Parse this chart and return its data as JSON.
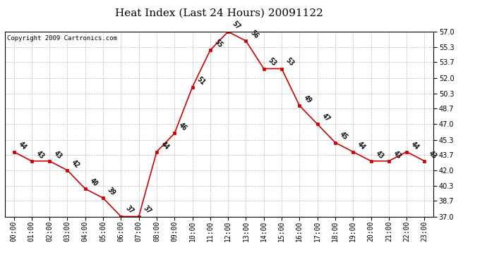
{
  "title": "Heat Index (Last 24 Hours) 20091122",
  "copyright": "Copyright 2009 Cartronics.com",
  "times": [
    "00:00",
    "01:00",
    "02:00",
    "03:00",
    "04:00",
    "05:00",
    "06:00",
    "07:00",
    "08:00",
    "09:00",
    "10:00",
    "11:00",
    "12:00",
    "13:00",
    "14:00",
    "15:00",
    "16:00",
    "17:00",
    "18:00",
    "19:00",
    "20:00",
    "21:00",
    "22:00",
    "23:00"
  ],
  "values": [
    44,
    43,
    43,
    42,
    40,
    39,
    37,
    37,
    44,
    46,
    51,
    55,
    57,
    56,
    53,
    53,
    49,
    47,
    45,
    44,
    43,
    43,
    44,
    43
  ],
  "ylim": [
    37.0,
    57.0
  ],
  "yticks": [
    37.0,
    38.7,
    40.3,
    42.0,
    43.7,
    45.3,
    47.0,
    48.7,
    50.3,
    52.0,
    53.7,
    55.3,
    57.0
  ],
  "line_color": "#cc0000",
  "marker_color": "#cc0000",
  "bg_color": "#ffffff",
  "plot_bg_color": "#ffffff",
  "grid_color": "#bbbbbb",
  "title_fontsize": 11,
  "copyright_fontsize": 6.5,
  "tick_fontsize": 7,
  "annotation_fontsize": 7
}
